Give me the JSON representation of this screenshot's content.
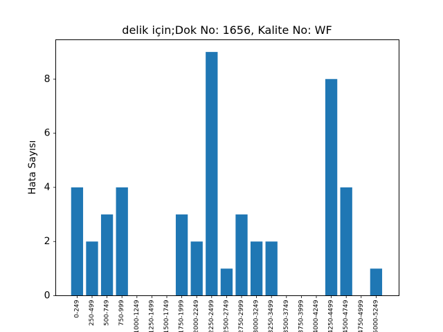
{
  "chart_data": {
    "type": "bar",
    "title": "delik için;Dok No: 1656, Kalite No: WF",
    "xlabel": "",
    "ylabel": "Hata Sayısı",
    "ylim": [
      0,
      9.45
    ],
    "yticks": [
      0,
      2,
      4,
      6,
      8
    ],
    "grid": false,
    "bar_color": "#1f77b4",
    "categories": [
      "0-249",
      "250-499",
      "500-749",
      "750-999",
      "1000-1249",
      "1250-1499",
      "1500-1749",
      "1750-1999",
      "2000-2249",
      "2250-2499",
      "2500-2749",
      "2750-2999",
      "3000-3249",
      "3250-3499",
      "3500-3749",
      "3750-3999",
      "4000-4249",
      "4250-4499",
      "4500-4749",
      "4750-4999",
      "5000-5249"
    ],
    "values": [
      4,
      2,
      3,
      4,
      0,
      0,
      0,
      3,
      2,
      9,
      1,
      3,
      2,
      2,
      0,
      0,
      0,
      8,
      4,
      0,
      1
    ]
  }
}
